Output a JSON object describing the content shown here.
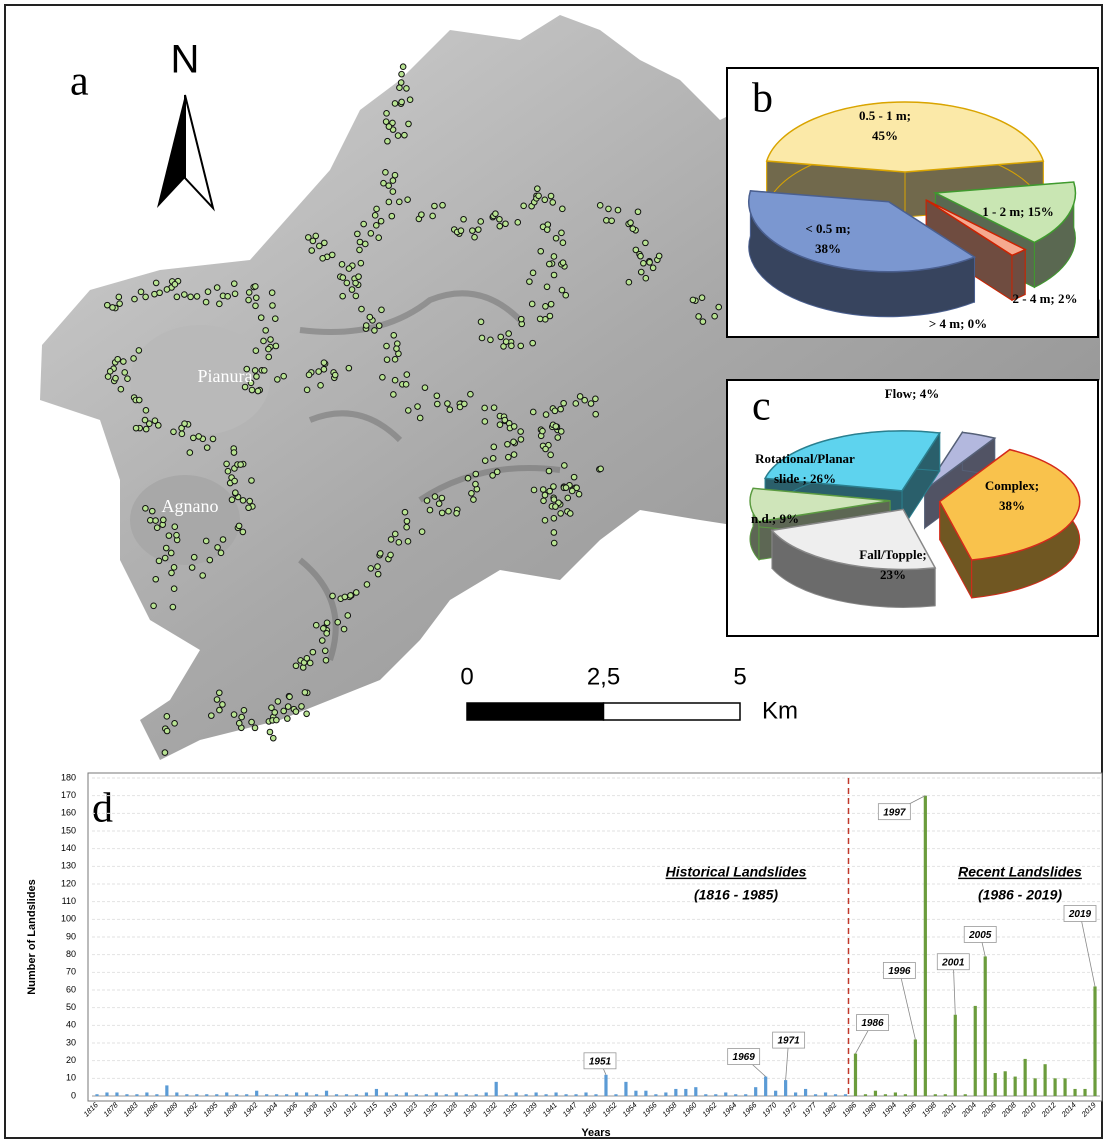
{
  "map": {
    "panel_label": "a",
    "north": "N",
    "places": [
      "Pianura",
      "Agnano"
    ],
    "scale_bar": {
      "ticks": [
        0,
        {
          "value": 2.5,
          "label": "2,5"
        },
        5
      ],
      "unit": "Km"
    }
  },
  "chart_data": [
    {
      "type": "pie",
      "panel_label": "b",
      "values": [
        45,
        15,
        2,
        0,
        38
      ],
      "value_labels": [
        "0.5 - 1 m; 45%",
        "1 - 2 m; 15%",
        "2 - 4 m; 2%",
        "> 4 m; 0%",
        "< 0.5 m; 38%"
      ],
      "colors": [
        "#fbe9a8",
        "#c9e6b3",
        "#f6a98f",
        "#dddddd",
        "#7b97d0"
      ],
      "edgecolors": [
        "#d9a400",
        "#3f9a2e",
        "#cc2200",
        "#888888",
        "#4a5f8f"
      ]
    },
    {
      "type": "pie",
      "panel_label": "c",
      "values": [
        38,
        23,
        9,
        26,
        4
      ],
      "value_labels": [
        "Complex; 38%",
        "Fall/Topple; 23%",
        "n.d.; 9%",
        "Rotational/Planar slide ; 26%",
        "Flow; 4%"
      ],
      "colors": [
        "#f9c24c",
        "#eeeeee",
        "#cfe5ba",
        "#5ed3ee",
        "#b3b8de"
      ],
      "edgecolors": [
        "#d42a1a",
        "#888888",
        "#5a9a40",
        "#2a7f8f",
        "#556077"
      ]
    },
    {
      "type": "bar",
      "panel_label": "d",
      "x_label": "Years",
      "y_label": "Number of Landslides",
      "categories": [
        "1816",
        null,
        "1878",
        null,
        "1883",
        null,
        "1886",
        null,
        "1889",
        null,
        "1892",
        null,
        "1895",
        null,
        "1898",
        null,
        "1902",
        null,
        "1904",
        null,
        "1906",
        null,
        "1908",
        null,
        "1910",
        null,
        "1912",
        null,
        "1915",
        null,
        "1919",
        null,
        "1923",
        null,
        "1925",
        null,
        "1928",
        null,
        "1930",
        null,
        "1932",
        null,
        "1935",
        null,
        "1939",
        null,
        "1941",
        null,
        "1947",
        null,
        "1950",
        null,
        "1952",
        null,
        "1954",
        null,
        "1956",
        null,
        "1958",
        null,
        "1960",
        null,
        "1962",
        null,
        "1964",
        null,
        "1966",
        null,
        "1970",
        null,
        "1972",
        null,
        "1977",
        null,
        "1982",
        null,
        "1986",
        null,
        "1989",
        null,
        "1994",
        null,
        "1996",
        null,
        "1998",
        null,
        "2001",
        null,
        "2004",
        null,
        "2006",
        null,
        "2008",
        null,
        "2010",
        null,
        "2012",
        null,
        "2014",
        null,
        "2019"
      ],
      "series": [
        {
          "name": "Historical Landslides",
          "period": "(1816 - 1985)",
          "color": "#5b9bd5",
          "values": [
            1,
            2,
            2,
            1,
            1,
            2,
            1,
            6,
            2,
            1,
            1,
            1,
            1,
            2,
            1,
            1,
            3,
            1,
            1,
            1,
            2,
            2,
            1,
            3,
            1,
            1,
            1,
            2,
            4,
            2,
            1,
            2,
            1,
            1,
            2,
            1,
            2,
            1,
            1,
            2,
            8,
            1,
            2,
            1,
            2,
            1,
            2,
            1,
            1,
            2,
            1,
            12,
            1,
            8,
            3,
            3,
            1,
            2,
            4,
            4,
            5,
            1,
            1,
            2,
            1,
            1,
            5,
            11,
            3,
            9,
            2,
            4,
            1,
            2,
            1,
            1,
            null,
            null,
            null,
            null,
            null,
            null,
            null,
            null,
            null,
            null,
            null,
            null,
            null,
            null,
            null,
            null,
            null,
            null,
            null,
            null,
            null,
            null,
            null,
            null,
            null
          ]
        },
        {
          "name": "Recent Landslides",
          "period": "(1986 - 2019)",
          "color": "#6b9c3c",
          "values": [
            null,
            null,
            null,
            null,
            null,
            null,
            null,
            null,
            null,
            null,
            null,
            null,
            null,
            null,
            null,
            null,
            null,
            null,
            null,
            null,
            null,
            null,
            null,
            null,
            null,
            null,
            null,
            null,
            null,
            null,
            null,
            null,
            null,
            null,
            null,
            null,
            null,
            null,
            null,
            null,
            null,
            null,
            null,
            null,
            null,
            null,
            null,
            null,
            null,
            null,
            null,
            null,
            null,
            null,
            null,
            null,
            null,
            null,
            null,
            null,
            null,
            null,
            null,
            null,
            null,
            null,
            null,
            null,
            null,
            null,
            null,
            null,
            null,
            null,
            null,
            null,
            24,
            1,
            3,
            1,
            2,
            1,
            32,
            170,
            1,
            1,
            46,
            1,
            51,
            79,
            13,
            14,
            11,
            21,
            10,
            18,
            10,
            10,
            4,
            4,
            62
          ]
        }
      ],
      "annotations": [
        "1951",
        "1969",
        "1971",
        "1986",
        "1996",
        "1997",
        "2001",
        "2005",
        "2019"
      ],
      "ylim": [
        0,
        180
      ],
      "yticks": [
        0,
        10,
        20,
        30,
        40,
        50,
        60,
        70,
        80,
        90,
        100,
        110,
        120,
        130,
        140,
        150,
        160,
        170,
        180
      ],
      "grid": true
    }
  ]
}
